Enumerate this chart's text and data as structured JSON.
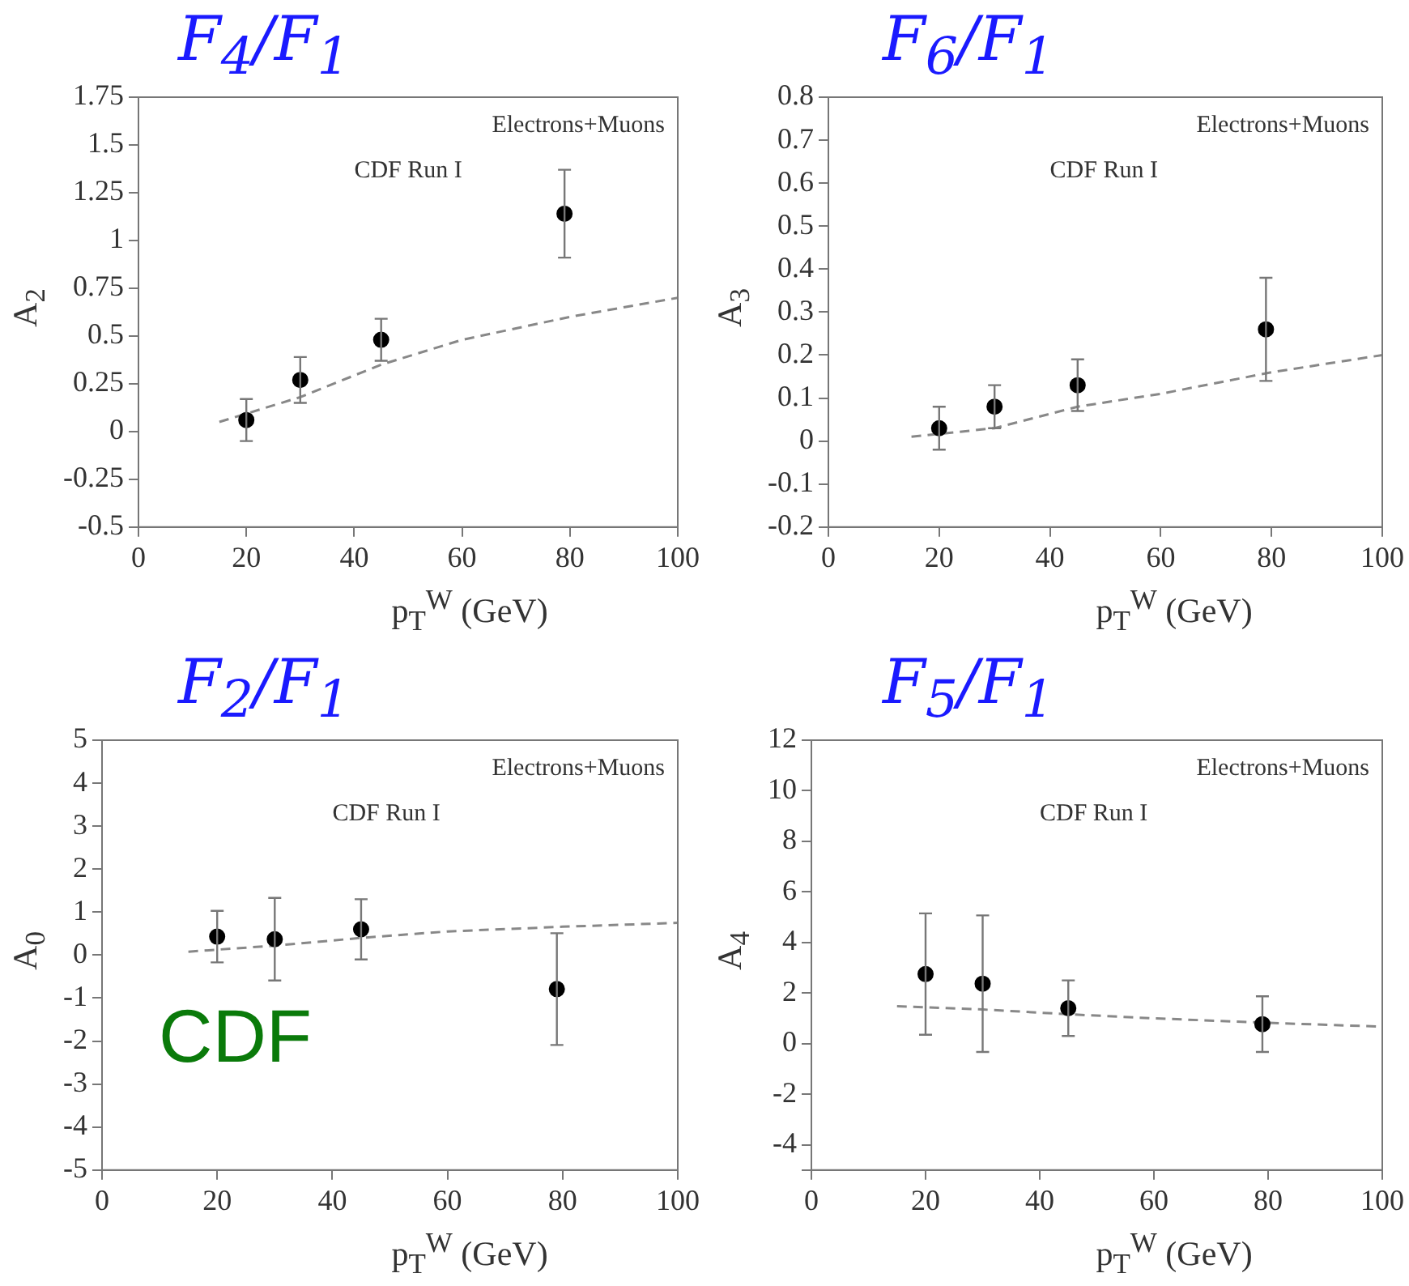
{
  "chart_data": [
    {
      "type": "scatter",
      "title": "F$_{4}$/F$_{1}$",
      "xlabel": "p$_{T}$$^{W}$ (GeV)",
      "ylabel": "A$_{2}$",
      "annotations": [
        "Electrons+Muons",
        "CDF Run I"
      ],
      "xlim": [
        0,
        100
      ],
      "xticks": [
        0,
        20,
        40,
        60,
        80,
        100
      ],
      "ylim": [
        -0.5,
        1.75
      ],
      "yticks": [
        -0.5,
        -0.25,
        0,
        0.25,
        0.5,
        0.75,
        1,
        1.25,
        1.5,
        1.75
      ],
      "grid": false,
      "legend": false,
      "series": [
        {
          "color": "#000000",
          "marker": "circle",
          "x": [
            20,
            30,
            45,
            79
          ],
          "values": [
            0.06,
            0.27,
            0.48,
            1.14
          ],
          "errors": [
            0.11,
            0.12,
            0.11,
            0.23
          ]
        },
        {
          "type": "line",
          "color": "#888888",
          "line_style": "dashed",
          "x": [
            15,
            30,
            45,
            60,
            80,
            100
          ],
          "values": [
            0.05,
            0.18,
            0.35,
            0.48,
            0.6,
            0.7
          ]
        }
      ]
    },
    {
      "type": "scatter",
      "title": "F$_{6}$/F$_{1}$",
      "xlabel": "p$_{T}$$^{W}$ (GeV)",
      "ylabel": "A$_{3}$",
      "annotations": [
        "Electrons+Muons",
        "CDF Run I"
      ],
      "xlim": [
        0,
        100
      ],
      "xticks": [
        0,
        20,
        40,
        60,
        80,
        100
      ],
      "ylim": [
        -0.2,
        0.8
      ],
      "yticks": [
        -0.2,
        -0.1,
        0,
        0.1,
        0.2,
        0.3,
        0.4,
        0.5,
        0.6,
        0.7,
        0.8
      ],
      "grid": false,
      "legend": false,
      "series": [
        {
          "color": "#000000",
          "marker": "circle",
          "x": [
            20,
            30,
            45,
            79
          ],
          "values": [
            0.03,
            0.08,
            0.13,
            0.26
          ],
          "errors": [
            0.05,
            0.05,
            0.06,
            0.12
          ]
        },
        {
          "type": "line",
          "color": "#888888",
          "line_style": "dashed",
          "x": [
            15,
            30,
            45,
            60,
            80,
            100
          ],
          "values": [
            0.01,
            0.03,
            0.08,
            0.11,
            0.16,
            0.2
          ]
        }
      ]
    },
    {
      "type": "scatter",
      "title": "F$_{2}$/F$_{1}$",
      "xlabel": "p$_{T}$$^{W}$ (GeV)",
      "ylabel": "A$_{0}$",
      "annotations": [
        "Electrons+Muons",
        "CDF Run I",
        "CDF"
      ],
      "xlim": [
        0,
        100
      ],
      "xticks": [
        0,
        20,
        40,
        60,
        80,
        100
      ],
      "ylim": [
        -5,
        5
      ],
      "yticks": [
        -5,
        -4,
        -3,
        -2,
        -1,
        0,
        1,
        2,
        3,
        4,
        5
      ],
      "grid": false,
      "legend": false,
      "series": [
        {
          "color": "#000000",
          "marker": "circle",
          "x": [
            20,
            30,
            45,
            79
          ],
          "values": [
            0.43,
            0.37,
            0.6,
            -0.79
          ],
          "errors": [
            0.6,
            0.96,
            0.7,
            1.3
          ]
        },
        {
          "type": "line",
          "color": "#888888",
          "line_style": "dashed",
          "x": [
            15,
            30,
            45,
            60,
            80,
            100
          ],
          "values": [
            0.08,
            0.22,
            0.4,
            0.55,
            0.66,
            0.75
          ]
        }
      ]
    },
    {
      "type": "scatter",
      "title": "F$_{5}$/F$_{1}$",
      "xlabel": "p$_{T}$$^{W}$ (GeV)",
      "ylabel": "A$_{4}$",
      "annotations": [
        "Electrons+Muons",
        "CDF Run I"
      ],
      "xlim": [
        0,
        100
      ],
      "xticks": [
        0,
        20,
        40,
        60,
        80,
        100
      ],
      "ylim": [
        -5,
        12
      ],
      "yticks": [
        {
          "value": -5,
          "label": null
        },
        -4,
        -2,
        0,
        2,
        4,
        6,
        8,
        10,
        12
      ],
      "grid": false,
      "legend": false,
      "series": [
        {
          "color": "#000000",
          "marker": "circle",
          "x": [
            20,
            30,
            45,
            79
          ],
          "values": [
            2.75,
            2.37,
            1.4,
            0.77
          ],
          "errors": [
            2.4,
            2.7,
            1.1,
            1.1
          ]
        },
        {
          "type": "line",
          "color": "#888888",
          "line_style": "dashed",
          "x": [
            15,
            30,
            45,
            60,
            80,
            100
          ],
          "values": [
            1.48,
            1.35,
            1.16,
            1.0,
            0.82,
            0.67
          ]
        }
      ]
    }
  ]
}
